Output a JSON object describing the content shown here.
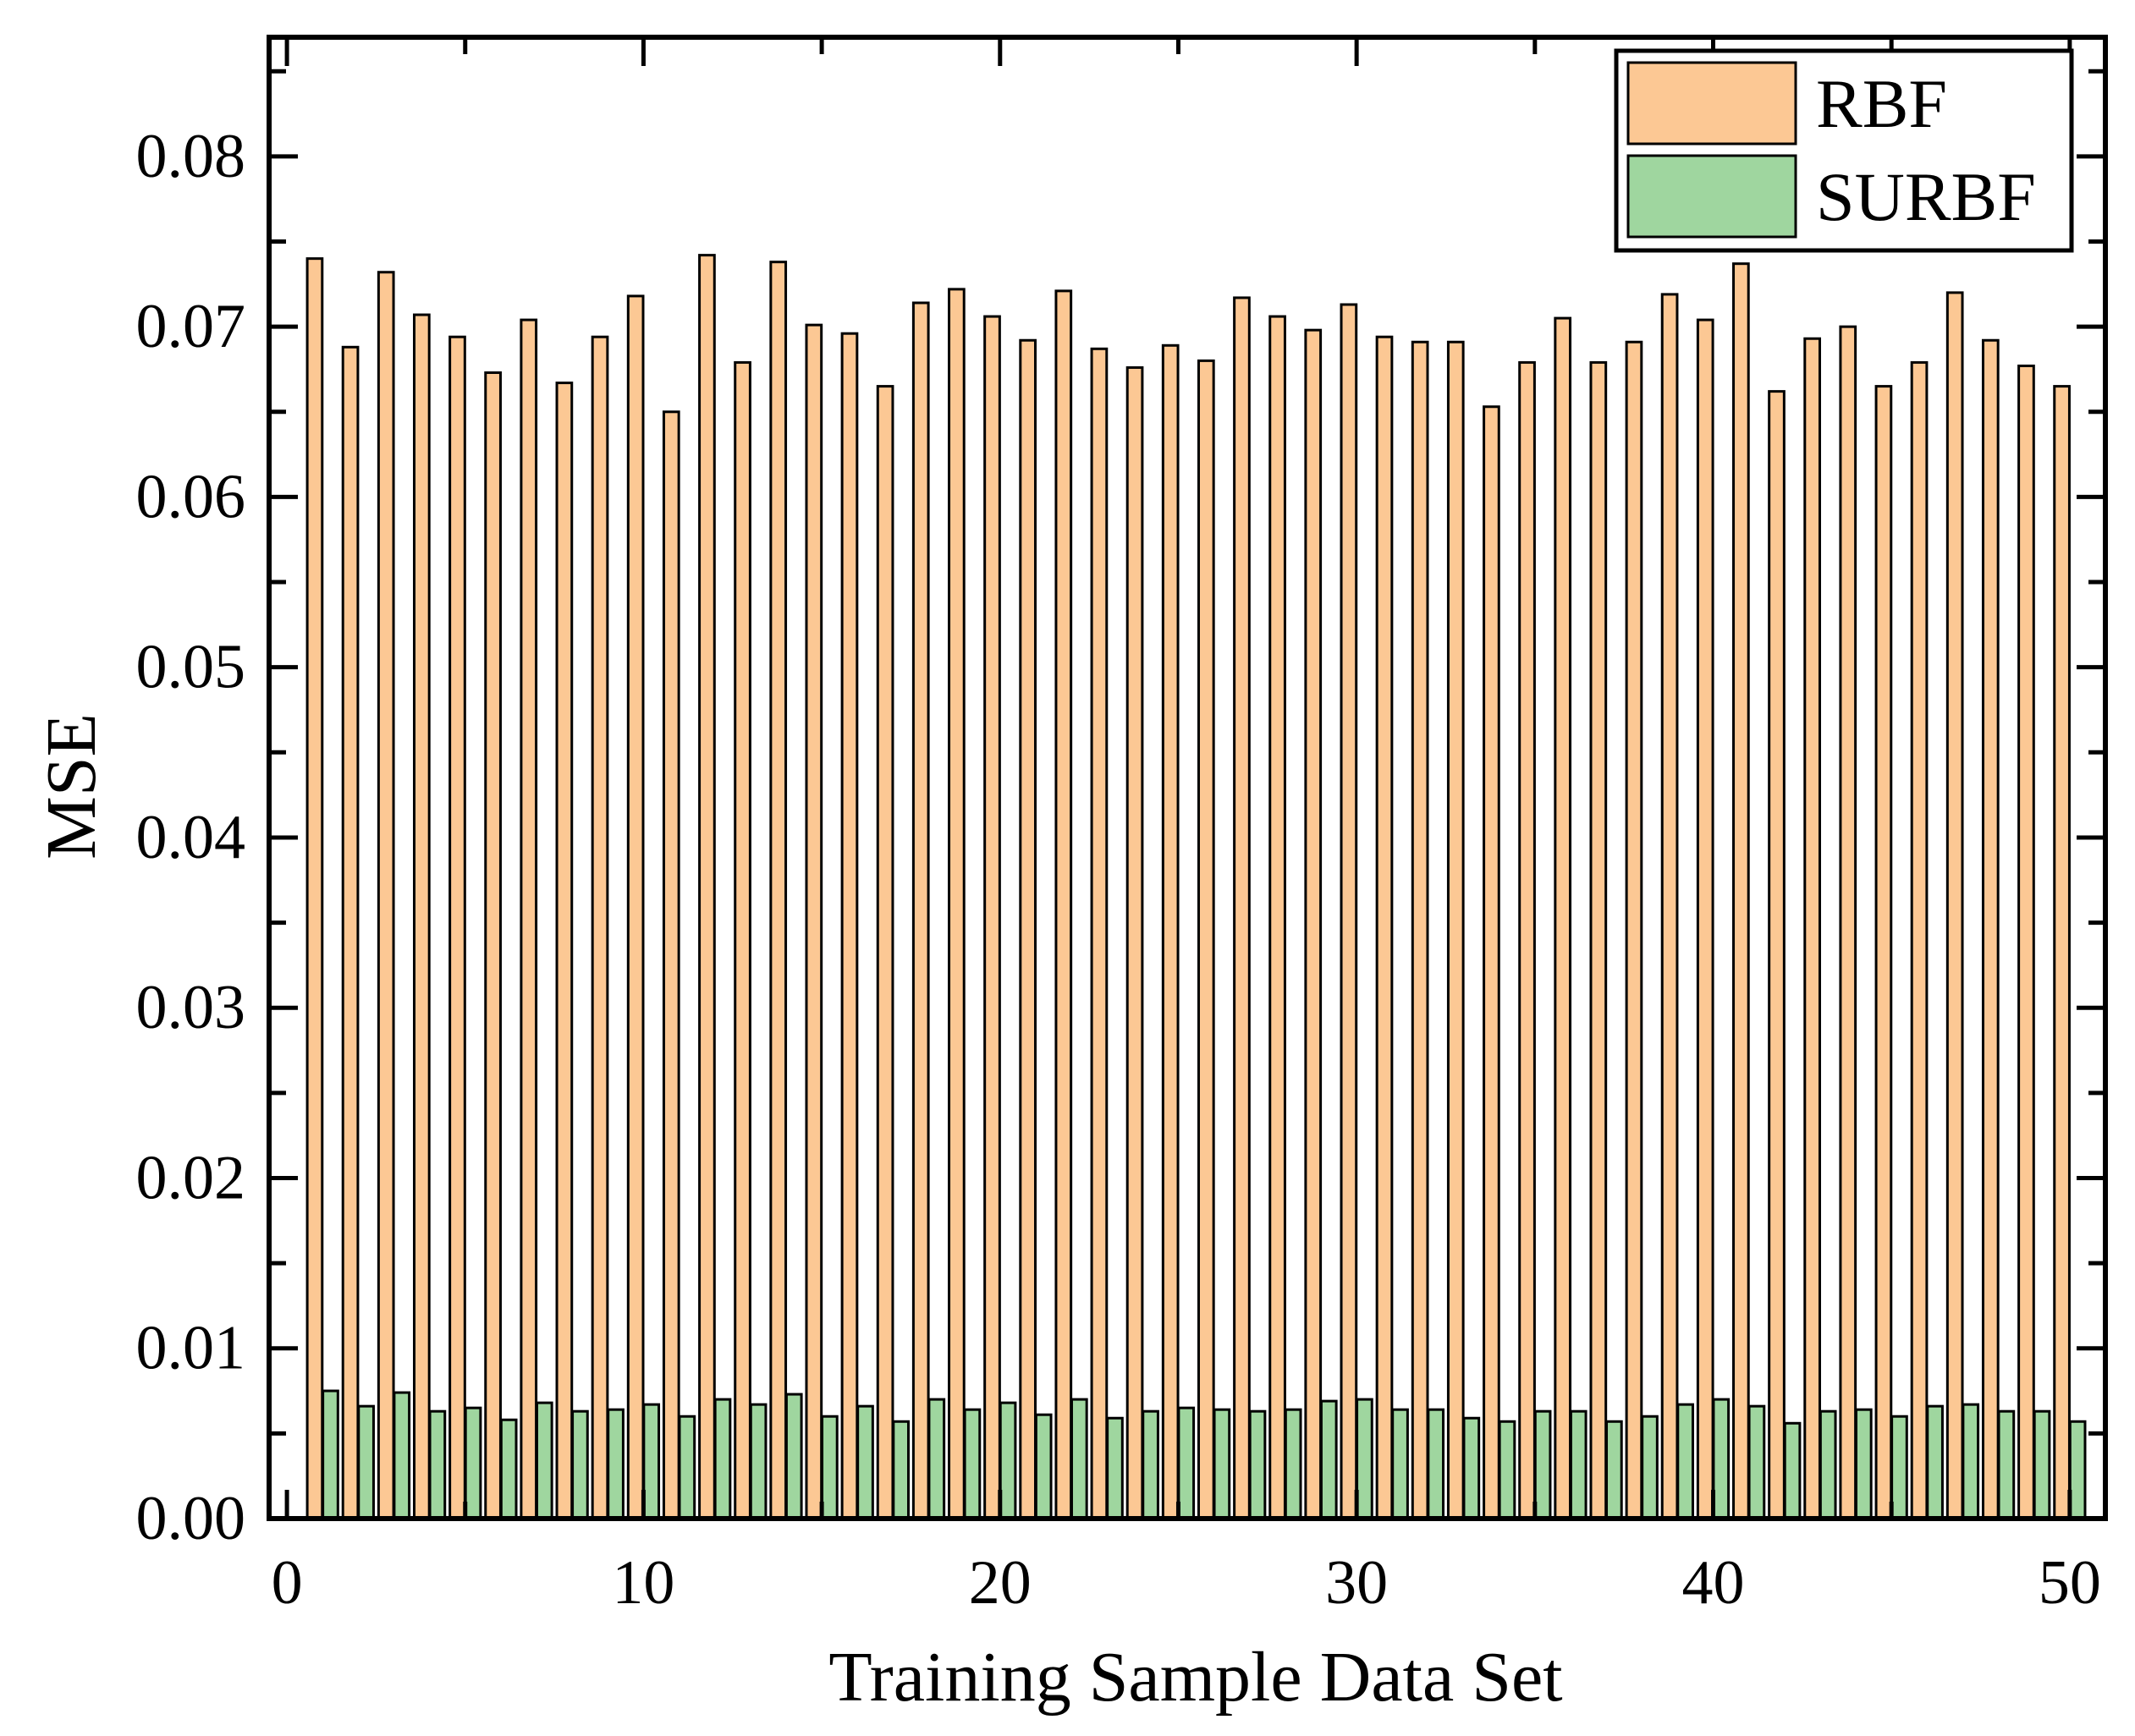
{
  "chart_data": {
    "type": "bar",
    "title": "",
    "xlabel": "Training Sample Data Set",
    "ylabel": "MSE",
    "xlim": [
      -0.5,
      51
    ],
    "ylim": [
      0,
      0.087
    ],
    "xticks": [
      0,
      10,
      20,
      30,
      40,
      50
    ],
    "xtick_labels": [
      "0",
      "10",
      "20",
      "30",
      "40",
      "50"
    ],
    "yticks": [
      0,
      0.01,
      0.02,
      0.03,
      0.04,
      0.05,
      0.06,
      0.07,
      0.08
    ],
    "ytick_labels": [
      "0.00",
      "0.01",
      "0.02",
      "0.03",
      "0.04",
      "0.05",
      "0.06",
      "0.07",
      "0.08"
    ],
    "legend_position": "top-right",
    "colors": {
      "RBF": "#fcc894",
      "SURBF": "#9fd69f",
      "edge": "#000000"
    },
    "categories": [
      1,
      2,
      3,
      4,
      5,
      6,
      7,
      8,
      9,
      10,
      11,
      12,
      13,
      14,
      15,
      16,
      17,
      18,
      19,
      20,
      21,
      22,
      23,
      24,
      25,
      26,
      27,
      28,
      29,
      30,
      31,
      32,
      33,
      34,
      35,
      36,
      37,
      38,
      39,
      40,
      41,
      42,
      43,
      44,
      45,
      46,
      47,
      48,
      49,
      50
    ],
    "series": [
      {
        "name": "RBF",
        "values": [
          0.074,
          0.0688,
          0.0732,
          0.0707,
          0.0694,
          0.0673,
          0.0704,
          0.0667,
          0.0694,
          0.0718,
          0.065,
          0.0742,
          0.0679,
          0.0738,
          0.0701,
          0.0696,
          0.0665,
          0.0714,
          0.0722,
          0.0706,
          0.0692,
          0.0721,
          0.0687,
          0.0676,
          0.0689,
          0.068,
          0.0717,
          0.0706,
          0.0698,
          0.0713,
          0.0694,
          0.0691,
          0.0691,
          0.0653,
          0.0679,
          0.0705,
          0.0679,
          0.0691,
          0.0719,
          0.0704,
          0.0737,
          0.0662,
          0.0693,
          0.07,
          0.0665,
          0.0679,
          0.072,
          0.0692,
          0.0677,
          0.0665
        ]
      },
      {
        "name": "SURBF",
        "values": [
          0.0075,
          0.0066,
          0.0074,
          0.0063,
          0.0065,
          0.0058,
          0.0068,
          0.0063,
          0.0064,
          0.0067,
          0.006,
          0.007,
          0.0067,
          0.0073,
          0.006,
          0.0066,
          0.0057,
          0.007,
          0.0064,
          0.0068,
          0.0061,
          0.007,
          0.0059,
          0.0063,
          0.0065,
          0.0064,
          0.0063,
          0.0064,
          0.0069,
          0.007,
          0.0064,
          0.0064,
          0.0059,
          0.0057,
          0.0063,
          0.0063,
          0.0057,
          0.006,
          0.0067,
          0.007,
          0.0066,
          0.0056,
          0.0063,
          0.0064,
          0.006,
          0.0066,
          0.0067,
          0.0063,
          0.0063,
          0.0057
        ]
      }
    ]
  }
}
